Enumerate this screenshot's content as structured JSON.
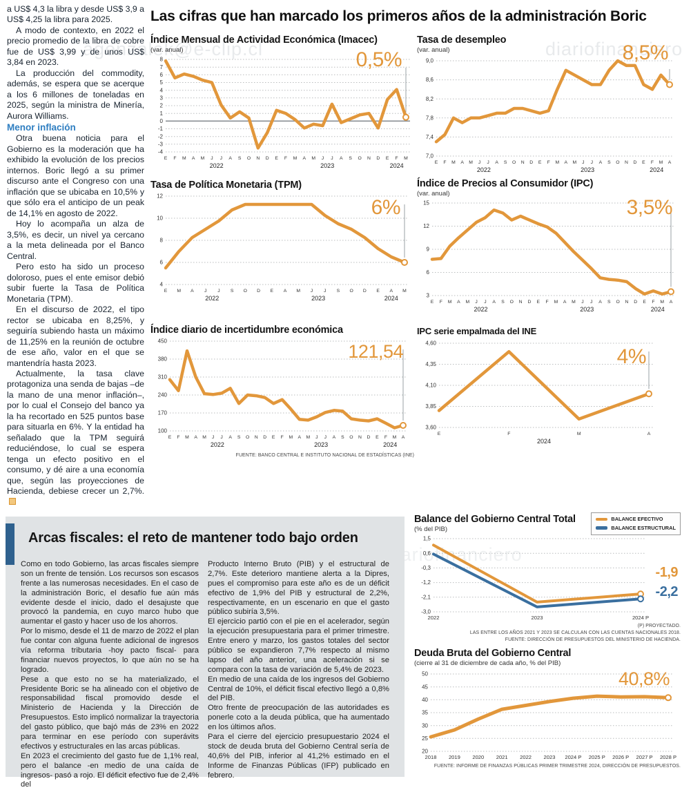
{
  "page": {
    "main_title": "Las cifras que han marcado los primeros años de la administración Boric",
    "watermarks": {
      "left": "agonzalek@e-clip.cl",
      "right": "diariofinanciero",
      "bottom": "ero#agonzalek@e-clip.cl          diariofinanciero"
    }
  },
  "left_article": {
    "p1": "a US$ 4,3 la libra y desde US$ 3,9 a US$ 4,25 la libra para 2025.",
    "p2": "A modo de contexto, en 2022 el precio promedio de la libra de cobre fue de US$ 3,99 y de unos US$ 3,84 en 2023.",
    "p3": "La producción del commodity, además, se espera que se acerque a los 6 millones de toneladas en 2025, según la ministra de Minería, Aurora Williams.",
    "subhead": "Menor inflación",
    "p4": "Otra buena noticia para el Gobierno es la moderación que ha exhibido la evolución de los precios internos. Boric llegó a su primer discurso ante el Congreso con una inflación que se ubicaba en 10,5% y que sólo era el anticipo de un peak de 14,1% en agosto de 2022.",
    "p5": "Hoy lo acompaña un alza de 3,5%, es decir, un nivel ya cercano a la meta delineada por el Banco Central.",
    "p6": "Pero esto ha sido un proceso doloroso, pues el ente emisor debió subir fuerte la Tasa de Política Monetaria (TPM).",
    "p7": "En el discurso de 2022, el tipo rector se ubicaba en 8,25%, y seguiría subiendo hasta un máximo de 11,25% en la reunión de octubre de ese año, valor en el que se mantendría hasta 2023.",
    "p8": "Actualmente, la tasa clave protagoniza una senda de bajas –de la mano de una menor inflación–, por lo cual el Consejo del banco ya la ha recortado en 525 puntos base para situarla en 6%. Y la entidad ha señalado que la TPM seguirá reduciéndose, lo cual se espera tenga un efecto positivo en el consumo, y dé aire a una economía que, según las proyecciones de Hacienda, debiese crecer un 2,7%."
  },
  "chart_data": [
    {
      "id": "imacec",
      "type": "line",
      "title": "Índice Mensual de Actividad Económica (Imacec)",
      "subtitle": "(var. anual)",
      "callout": "0,5%",
      "ylim": [
        -4,
        8
      ],
      "yticks": [
        8,
        7,
        6,
        5,
        4,
        3,
        2,
        1,
        0,
        -1,
        -2,
        -3,
        -4
      ],
      "ytick_labels": [
        "8",
        "7",
        "6",
        "5",
        "4",
        "3",
        "2",
        "1",
        "0",
        "-1",
        "-2",
        "-3",
        "-4"
      ],
      "zero_line": 0,
      "callout_line": true,
      "x_labels": [
        "E",
        "F",
        "M",
        "A",
        "M",
        "J",
        "J",
        "A",
        "S",
        "O",
        "N",
        "D",
        "E",
        "F",
        "M",
        "A",
        "M",
        "J",
        "J",
        "A",
        "S",
        "O",
        "N",
        "D",
        "E",
        "F",
        "M"
      ],
      "year_ticks": [
        {
          "label": "2022",
          "index": 5.5
        },
        {
          "label": "2023",
          "index": 17.5
        },
        {
          "label": "2024",
          "index": 25
        }
      ],
      "series": [
        {
          "name": "Imacec",
          "color": "#e2973b",
          "values": [
            7.8,
            5.6,
            6.1,
            5.8,
            5.3,
            5.0,
            2.1,
            0.4,
            1.2,
            0.4,
            -3.5,
            -1.5,
            1.4,
            1.0,
            0.2,
            -0.9,
            -0.4,
            -0.6,
            2.2,
            -0.2,
            0.3,
            0.8,
            1.0,
            -0.9,
            2.8,
            4.1,
            0.5
          ]
        }
      ]
    },
    {
      "id": "desempleo",
      "type": "line",
      "title": "Tasa de desempleo",
      "subtitle": "(var. anual)",
      "callout": "8,5%",
      "ylim": [
        7.0,
        9.0
      ],
      "yticks": [
        9.0,
        8.6,
        8.2,
        7.8,
        7.4,
        7.0
      ],
      "ytick_labels": [
        "9,0",
        "8,6",
        "8,2",
        "7,8",
        "7,4",
        "7,0"
      ],
      "callout_line": true,
      "x_labels": [
        "E",
        "F",
        "M",
        "A",
        "M",
        "J",
        "J",
        "A",
        "S",
        "O",
        "N",
        "D",
        "E",
        "F",
        "M",
        "A",
        "M",
        "J",
        "J",
        "A",
        "S",
        "O",
        "N",
        "D",
        "E",
        "F",
        "M",
        "A"
      ],
      "year_ticks": [
        {
          "label": "2022",
          "index": 5.5
        },
        {
          "label": "2023",
          "index": 17.5
        },
        {
          "label": "2024",
          "index": 25.5
        }
      ],
      "series": [
        {
          "name": "Tasa de desempleo",
          "color": "#e2973b",
          "values": [
            7.3,
            7.45,
            7.8,
            7.7,
            7.8,
            7.8,
            7.85,
            7.9,
            7.9,
            8.0,
            8.0,
            7.95,
            7.9,
            7.95,
            8.4,
            8.8,
            8.7,
            8.6,
            8.5,
            8.5,
            8.8,
            9.0,
            8.9,
            8.9,
            8.5,
            8.4,
            8.7,
            8.5
          ]
        }
      ]
    },
    {
      "id": "tpm",
      "type": "line",
      "title": "Tasa de Política Monetaria (TPM)",
      "subtitle": "",
      "callout": "6%",
      "ylim": [
        4,
        12
      ],
      "yticks": [
        12,
        10,
        8,
        6,
        4
      ],
      "ytick_labels": [
        "12",
        "10",
        "8",
        "6",
        "4"
      ],
      "callout_line": true,
      "x_labels": [
        "E",
        "M",
        "A",
        "J",
        "J",
        "S",
        "O",
        "D",
        "E",
        "A",
        "M",
        "J",
        "J",
        "S",
        "O",
        "D",
        "E",
        "A",
        "M"
      ],
      "year_ticks": [
        {
          "label": "2022",
          "index": 3.5
        },
        {
          "label": "2023",
          "index": 11.5
        },
        {
          "label": "2024",
          "index": 17
        }
      ],
      "series": [
        {
          "name": "TPM",
          "color": "#e2973b",
          "values": [
            5.5,
            7.0,
            8.25,
            9.0,
            9.75,
            10.75,
            11.25,
            11.25,
            11.25,
            11.25,
            11.25,
            11.25,
            10.25,
            9.5,
            9.0,
            8.25,
            7.25,
            6.5,
            6.0
          ]
        }
      ]
    },
    {
      "id": "ipc",
      "type": "line",
      "title": "Índice de Precios al Consumidor (IPC)",
      "subtitle": "(var. anual)",
      "callout": "3,5%",
      "ylim": [
        3,
        15
      ],
      "yticks": [
        15,
        12,
        9,
        6,
        3
      ],
      "ytick_labels": [
        "15",
        "12",
        "9",
        "6",
        "3"
      ],
      "callout_line": true,
      "x_labels": [
        "E",
        "F",
        "M",
        "A",
        "M",
        "J",
        "J",
        "A",
        "S",
        "O",
        "N",
        "D",
        "E",
        "F",
        "M",
        "A",
        "M",
        "J",
        "J",
        "A",
        "S",
        "O",
        "N",
        "D",
        "E",
        "F",
        "M",
        "A"
      ],
      "year_ticks": [
        {
          "label": "2022",
          "index": 5.5
        },
        {
          "label": "2023",
          "index": 17.5
        },
        {
          "label": "2024",
          "index": 25.5
        }
      ],
      "series": [
        {
          "name": "IPC",
          "color": "#e2973b",
          "values": [
            7.7,
            7.8,
            9.4,
            10.5,
            11.5,
            12.5,
            13.1,
            14.1,
            13.7,
            12.8,
            13.3,
            12.8,
            12.3,
            11.9,
            11.1,
            9.9,
            8.7,
            7.6,
            6.5,
            5.3,
            5.1,
            5.0,
            4.8,
            3.9,
            3.2,
            3.6,
            3.2,
            3.5
          ]
        }
      ]
    },
    {
      "id": "incertidumbre",
      "type": "line",
      "title": "Índice diario de incertidumbre económica",
      "subtitle": "",
      "callout": "121,54",
      "ylim": [
        100,
        450
      ],
      "yticks": [
        450,
        380,
        310,
        240,
        170,
        100
      ],
      "ytick_labels": [
        "450",
        "380",
        "310",
        "240",
        "170",
        "100"
      ],
      "callout_line": true,
      "source": "FUENTE: BANCO CENTRAL E INSTITUTO NACIONAL DE ESTADÍSTICAS (INE)",
      "x_labels": [
        "E",
        "F",
        "M",
        "A",
        "M",
        "J",
        "J",
        "A",
        "S",
        "O",
        "N",
        "D",
        "E",
        "F",
        "M",
        "A",
        "M",
        "J",
        "J",
        "A",
        "S",
        "O",
        "N",
        "D",
        "E",
        "F",
        "M",
        "A"
      ],
      "year_ticks": [
        {
          "label": "2022",
          "index": 5.5
        },
        {
          "label": "2023",
          "index": 17.5
        },
        {
          "label": "2024",
          "index": 25.5
        }
      ],
      "series": [
        {
          "name": "Incertidumbre económica",
          "color": "#e2973b",
          "values": [
            300,
            257,
            412,
            310,
            245,
            242,
            247,
            266,
            207,
            240,
            237,
            230,
            207,
            222,
            185,
            145,
            142,
            155,
            172,
            180,
            177,
            147,
            142,
            139,
            147,
            130,
            112,
            121.54
          ]
        }
      ]
    },
    {
      "id": "empalmada",
      "type": "line",
      "title": "IPC serie empalmada del INE",
      "subtitle": "",
      "callout": "4%",
      "ylim": [
        3.6,
        4.6
      ],
      "yticks": [
        4.6,
        4.35,
        4.1,
        3.85,
        3.6
      ],
      "ytick_labels": [
        "4,60",
        "4,35",
        "4,10",
        "3,85",
        "3,60"
      ],
      "callout_line": true,
      "x_labels": [
        "E",
        "F",
        "M",
        "A"
      ],
      "year_ticks": [
        {
          "label": "2024",
          "index": 1.5
        }
      ],
      "series": [
        {
          "name": "IPC serie empalmada",
          "color": "#e2973b",
          "values": [
            3.8,
            4.5,
            3.7,
            4.0
          ]
        }
      ]
    },
    {
      "id": "balance",
      "type": "line",
      "title": "Balance del Gobierno Central Total",
      "subtitle": "(% del PIB)",
      "callouts": [
        "-1,9",
        "-2,2"
      ],
      "ylim": [
        -3.0,
        1.5
      ],
      "yticks": [
        1.5,
        0.6,
        -0.3,
        -1.2,
        -2.1,
        -3.0
      ],
      "ytick_labels": [
        "1,5",
        "0,6",
        "-0,3",
        "-1,2",
        "-2,1",
        "-3,0"
      ],
      "callout_line": false,
      "x_labels": [
        "2022",
        "2023",
        "2024 P"
      ],
      "year_ticks": [],
      "series": [
        {
          "name": "BALANCE EFECTIVO",
          "color": "#e2973b",
          "values": [
            1.1,
            -2.4,
            -1.9
          ]
        },
        {
          "name": "BALANCE ESTRUCTURAL",
          "color": "#3a6f9f",
          "values": [
            0.55,
            -2.7,
            -2.2
          ]
        }
      ],
      "footnotes": [
        "(P) PROYECTADO.",
        "LAS ENTRE LOS AÑOS 2021 Y 2023 SE CALCULAN  CON LAS CUENTAS NACIONALES 2018.",
        "FUENTE: DIRECCIÓN DE PRESUPUESTOS DEL MINISTERIO DE HACIENDA."
      ]
    },
    {
      "id": "deuda",
      "type": "line",
      "title": "Deuda Bruta del Gobierno Central",
      "subtitle": "(cierre al 31 de diciembre de cada año, % del PIB)",
      "callout": "40,8%",
      "ylim": [
        20,
        50
      ],
      "yticks": [
        50,
        45,
        40,
        35,
        30,
        25,
        20
      ],
      "ytick_labels": [
        "50",
        "45",
        "40",
        "35",
        "30",
        "25",
        "20"
      ],
      "callout_line": false,
      "source": "FUENTE: INFORME DE FINANZAS PÚBLICAS PRIMER TRIMESTRE 2024, DIRECCIÓN DE PRESUPUESTOS.",
      "x_labels": [
        "2018",
        "2019",
        "2020",
        "2021",
        "2022",
        "2023",
        "2024 P",
        "2025 P",
        "2026 P",
        "2027 P",
        "2028 P"
      ],
      "year_ticks": [],
      "series": [
        {
          "name": "Deuda bruta",
          "color": "#e2973b",
          "values": [
            25.6,
            28.3,
            32.5,
            36.3,
            37.8,
            39.3,
            40.6,
            41.4,
            41.1,
            41.2,
            40.8
          ]
        }
      ]
    }
  ],
  "fiscal": {
    "title": "Arcas fiscales: el reto de mantener todo bajo orden",
    "col1": {
      "p1": "Como en todo Gobierno, las arcas fiscales siempre son un frente de tensión. Los recursos son escasos frente a las numerosas necesidades. En el caso de la administración Boric, el desafío fue aún más evidente desde el inicio, dado el desajuste que provocó la pandemia, en cuyo marco hubo que aumentar el gasto y hacer uso de los ahorros.",
      "p2": "Por lo mismo, desde el 11 de marzo de 2022 el plan fue contar con alguna fuente adicional de ingresos vía reforma tributaria -hoy pacto fiscal- para financiar nuevos proyectos, lo que aún no se ha logrado.",
      "p3": "Pese a que esto no se ha materializado, el Presidente Boric se ha alineado con el objetivo de responsabilidad fiscal promovido desde el Ministerio de Hacienda y la Dirección de Presupuestos. Esto implicó normalizar la trayectoria del gasto público, que bajó más de 23% en 2022 para terminar en ese período con superávits efectivos y estructurales en las arcas públicas.",
      "p4": "En 2023 el crecimiento del gasto fue de 1,1% real, pero el balance -en medio de una caída de ingresos-  pasó a rojo. El déficit efectivo fue de 2,4% del"
    },
    "col2": {
      "p1": "Producto Interno Bruto (PIB) y el estructural de 2,7%. Este deterioro mantiene alerta a la Dipres, pues el compromiso para este año es de un déficit efectivo de 1,9% del PIB y estructural de 2,2%, respectivamente, en un escenario en que el gasto público subiría 3,5%.",
      "p2": "El ejercicio partió con el pie en el acelerador, según la ejecución presupuestaria para el primer trimestre. Entre enero y marzo, los gastos totales del sector público se expandieron 7,7% respecto al mismo lapso del año anterior, una aceleración si se compara con la tasa de variación de 5,4% de 2023.",
      "p3": "En medio de una caída de los ingresos del Gobierno Central de 10%, el déficit fiscal efectivo llegó a 0,8% del PIB.",
      "p4": "Otro frente de preocupación de las autoridades es ponerle coto a la deuda pública, que ha aumentado en los últimos años.",
      "p5": "Para el cierre del ejercicio presupuestario 2024 el stock de deuda bruta del Gobierno Central sería de 40,6% del PIB, inferior al 41,2% estimado en el Informe de Finanzas Públicas (IFP) publicado en febrero."
    }
  }
}
